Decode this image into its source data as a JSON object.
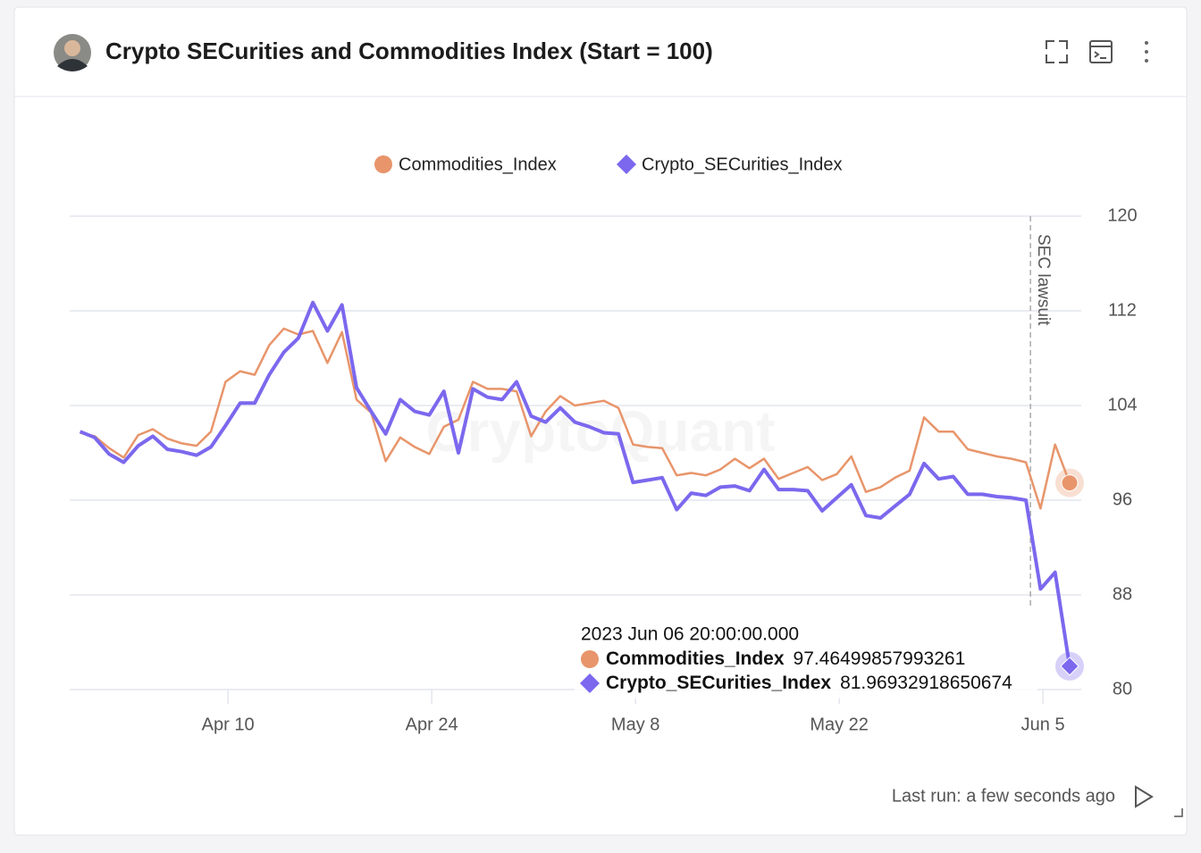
{
  "header": {
    "title": "Crypto SECurities and Commodities Index (Start = 100)"
  },
  "chart_data": {
    "type": "line",
    "watermark": "CryptoQuant",
    "x": [
      "2023-03-30 20:00",
      "2023-03-31 20:00",
      "2023-04-01 20:00",
      "2023-04-02 20:00",
      "2023-04-03 20:00",
      "2023-04-04 20:00",
      "2023-04-05 20:00",
      "2023-04-06 20:00",
      "2023-04-07 20:00",
      "2023-04-08 20:00",
      "2023-04-09 20:00",
      "2023-04-10 20:00",
      "2023-04-11 20:00",
      "2023-04-12 20:00",
      "2023-04-13 20:00",
      "2023-04-14 20:00",
      "2023-04-15 20:00",
      "2023-04-16 20:00",
      "2023-04-17 20:00",
      "2023-04-18 20:00",
      "2023-04-19 20:00",
      "2023-04-20 20:00",
      "2023-04-21 20:00",
      "2023-04-22 20:00",
      "2023-04-23 20:00",
      "2023-04-24 20:00",
      "2023-04-25 20:00",
      "2023-04-26 20:00",
      "2023-04-27 20:00",
      "2023-04-28 20:00",
      "2023-04-29 20:00",
      "2023-04-30 20:00",
      "2023-05-01 20:00",
      "2023-05-02 20:00",
      "2023-05-03 20:00",
      "2023-05-04 20:00",
      "2023-05-05 20:00",
      "2023-05-06 20:00",
      "2023-05-07 20:00",
      "2023-05-08 20:00",
      "2023-05-09 20:00",
      "2023-05-10 20:00",
      "2023-05-11 20:00",
      "2023-05-12 20:00",
      "2023-05-13 20:00",
      "2023-05-14 20:00",
      "2023-05-15 20:00",
      "2023-05-16 20:00",
      "2023-05-17 20:00",
      "2023-05-18 20:00",
      "2023-05-19 20:00",
      "2023-05-20 20:00",
      "2023-05-21 20:00",
      "2023-05-22 20:00",
      "2023-05-23 20:00",
      "2023-05-24 20:00",
      "2023-05-25 20:00",
      "2023-05-26 20:00",
      "2023-05-27 20:00",
      "2023-05-28 20:00",
      "2023-05-29 20:00",
      "2023-05-30 20:00",
      "2023-05-31 20:00",
      "2023-06-01 20:00",
      "2023-06-02 20:00",
      "2023-06-03 20:00",
      "2023-06-04 20:00",
      "2023-06-05 20:00",
      "2023-06-06 20:00"
    ],
    "series": [
      {
        "name": "Commodities_Index",
        "color": "#e8956b",
        "marker": "circle",
        "values": [
          101.7,
          101.4,
          100.4,
          99.6,
          101.5,
          102.0,
          101.2,
          100.8,
          100.6,
          101.8,
          106.0,
          106.9,
          106.6,
          109.1,
          110.5,
          110.0,
          110.3,
          107.6,
          110.2,
          104.5,
          103.4,
          99.3,
          101.3,
          100.5,
          99.9,
          102.2,
          102.8,
          106.0,
          105.4,
          105.4,
          105.2,
          101.4,
          103.5,
          104.8,
          104.0,
          104.2,
          104.4,
          103.8,
          100.7,
          100.5,
          100.4,
          98.1,
          98.3,
          98.1,
          98.6,
          99.5,
          98.7,
          99.5,
          97.8,
          98.3,
          98.8,
          97.7,
          98.2,
          99.7,
          96.7,
          97.1,
          97.9,
          98.5,
          103.0,
          101.8,
          101.8,
          100.3,
          100.0,
          99.7,
          99.5,
          99.2,
          95.3,
          100.7,
          97.46499857993261
        ]
      },
      {
        "name": "Crypto_SECurities_Index",
        "color": "#7b68ee",
        "marker": "diamond",
        "values": [
          101.8,
          101.3,
          99.9,
          99.2,
          100.6,
          101.4,
          100.3,
          100.1,
          99.8,
          100.5,
          102.3,
          104.2,
          104.2,
          106.6,
          108.5,
          109.7,
          112.7,
          110.3,
          112.5,
          105.5,
          103.5,
          101.6,
          104.5,
          103.5,
          103.2,
          105.2,
          100.0,
          105.4,
          104.7,
          104.5,
          106.0,
          103.1,
          102.6,
          103.8,
          102.6,
          102.2,
          101.7,
          101.6,
          97.5,
          97.7,
          97.9,
          95.2,
          96.6,
          96.4,
          97.1,
          97.2,
          96.8,
          98.6,
          96.9,
          96.9,
          96.8,
          95.1,
          96.2,
          97.3,
          94.7,
          94.5,
          95.5,
          96.5,
          99.1,
          97.8,
          98.0,
          96.5,
          96.5,
          96.3,
          96.2,
          96.0,
          88.5,
          89.9,
          81.96932918650674
        ]
      }
    ],
    "xlim": [
      "2023-03-30",
      "2023-06-08"
    ],
    "xticks": [
      {
        "value": "2023-04-10",
        "label": "Apr 10"
      },
      {
        "value": "2023-04-24",
        "label": "Apr 24"
      },
      {
        "value": "2023-05-08",
        "label": "May 8"
      },
      {
        "value": "2023-05-22",
        "label": "May 22"
      },
      {
        "value": "2023-06-05",
        "label": "Jun 5"
      }
    ],
    "ylim": [
      80,
      120
    ],
    "yticks": [
      80,
      88,
      96,
      104,
      112,
      120
    ],
    "grid": true,
    "annotations": [
      {
        "x": "2023-06-05",
        "text": "SEC lawsuit"
      }
    ],
    "tooltip": {
      "label": "2023 Jun 06 20:00:00.000",
      "index": 68
    }
  },
  "footer": {
    "last_run": "Last run: a few seconds ago"
  }
}
